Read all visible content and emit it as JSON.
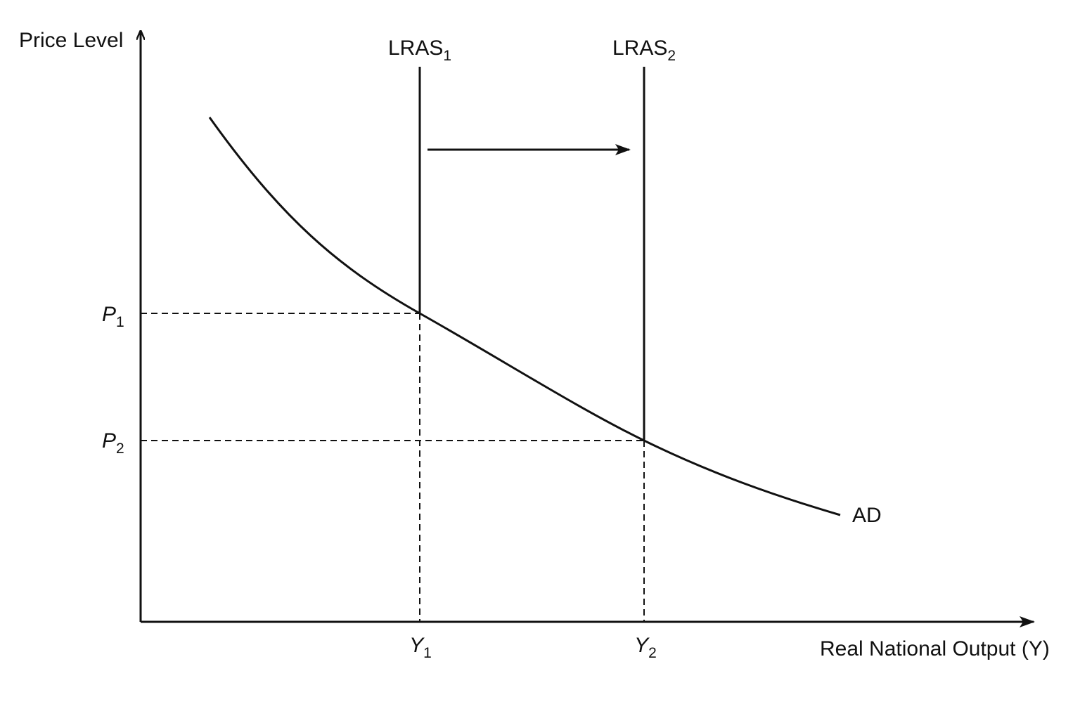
{
  "axes": {
    "y_label": "Price Level",
    "x_label": "Real National Output (Y)"
  },
  "curves": [
    {
      "name": "LRAS",
      "subscript": "1"
    },
    {
      "name": "LRAS",
      "subscript": "2"
    },
    {
      "name": "AD"
    }
  ],
  "price_levels": [
    {
      "name": "P",
      "subscript": "1"
    },
    {
      "name": "P",
      "subscript": "2"
    }
  ],
  "outputs": [
    {
      "name": "Y",
      "subscript": "1"
    },
    {
      "name": "Y",
      "subscript": "2"
    }
  ]
}
